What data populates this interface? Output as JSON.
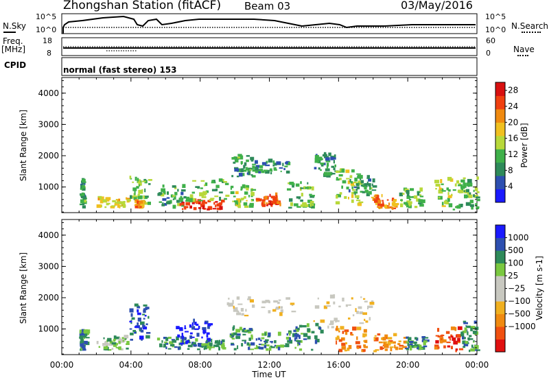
{
  "header": {
    "station": "Zhongshan Station (fitACF)",
    "beam": "Beam 03",
    "date": "03/May/2016"
  },
  "left_labels": {
    "nsky": "N.Sky",
    "freq": "Freq.",
    "mhz": "[MHz]",
    "cpid": "CPID"
  },
  "right_labels": {
    "nsearch": "N.Search",
    "nave": "Nave"
  },
  "cpid_text": "normal (fast stereo) 153",
  "noise_axis": {
    "left_top": "10^5",
    "left_bottom": "10^0",
    "right_top": "10^5",
    "right_bottom": "10^0"
  },
  "freq_axis": {
    "left_top": "18",
    "left_bottom": "8",
    "right_top": "60",
    "right_bottom": "0"
  },
  "colors": {
    "power_scale": [
      "#1a1aff",
      "#2d4fb0",
      "#2e8a5a",
      "#3fb04a",
      "#b8d83a",
      "#f0c020",
      "#f08a10",
      "#f04010",
      "#d81010"
    ],
    "velocity_scale": [
      "#e01010",
      "#f05010",
      "#f08a10",
      "#f0b020",
      "#c8c8c0",
      "#c8c8c0",
      "#7ac840",
      "#2e8a5a",
      "#2d4fb0",
      "#1a1aff"
    ]
  },
  "chart_data": [
    {
      "type": "heatmap",
      "name": "power",
      "ylabel": "Slant Range [km]",
      "xlabel": "",
      "x_ticks": [
        "00:00",
        "04:00",
        "08:00",
        "12:00",
        "16:00",
        "20:00",
        "00:00"
      ],
      "y_ticks": [
        1000,
        2000,
        3000,
        4000
      ],
      "ylim": [
        180,
        4500
      ],
      "xlim_hours": [
        0,
        24
      ],
      "colorbar": {
        "label": "Power [dB]",
        "ticks": [
          4,
          8,
          12,
          16,
          20,
          24,
          28
        ],
        "range": [
          0,
          30
        ]
      },
      "regions": [
        {
          "t0": 1.0,
          "t1": 1.3,
          "r0": 300,
          "r1": 1200,
          "v": 10
        },
        {
          "t0": 2.0,
          "t1": 3.8,
          "r0": 300,
          "r1": 600,
          "v": 18
        },
        {
          "t0": 3.9,
          "t1": 5.0,
          "r0": 300,
          "r1": 1300,
          "v": 12
        },
        {
          "t0": 4.2,
          "t1": 4.6,
          "r0": 300,
          "r1": 500,
          "v": 22
        },
        {
          "t0": 5.5,
          "t1": 7.0,
          "r0": 300,
          "r1": 1000,
          "v": 10
        },
        {
          "t0": 6.8,
          "t1": 9.3,
          "r0": 250,
          "r1": 520,
          "v": 27
        },
        {
          "t0": 7.0,
          "t1": 9.5,
          "r0": 500,
          "r1": 1250,
          "v": 12
        },
        {
          "t0": 9.8,
          "t1": 11.0,
          "r0": 1300,
          "r1": 2000,
          "v": 10
        },
        {
          "t0": 9.7,
          "t1": 11.0,
          "r0": 300,
          "r1": 1000,
          "v": 14
        },
        {
          "t0": 11.2,
          "t1": 12.6,
          "r0": 350,
          "r1": 700,
          "v": 24
        },
        {
          "t0": 11.0,
          "t1": 13.0,
          "r0": 1400,
          "r1": 1800,
          "v": 9
        },
        {
          "t0": 13.0,
          "t1": 14.5,
          "r0": 300,
          "r1": 1100,
          "v": 12
        },
        {
          "t0": 14.5,
          "t1": 15.8,
          "r0": 1300,
          "r1": 2000,
          "v": 9
        },
        {
          "t0": 15.8,
          "t1": 17.2,
          "r0": 300,
          "r1": 1500,
          "v": 14
        },
        {
          "t0": 16.5,
          "t1": 18.0,
          "r0": 700,
          "r1": 1300,
          "v": 10
        },
        {
          "t0": 17.8,
          "t1": 19.3,
          "r0": 250,
          "r1": 700,
          "v": 22
        },
        {
          "t0": 19.5,
          "t1": 20.8,
          "r0": 300,
          "r1": 900,
          "v": 12
        },
        {
          "t0": 21.5,
          "t1": 23.0,
          "r0": 250,
          "r1": 1200,
          "v": 14
        },
        {
          "t0": 23.0,
          "t1": 24.0,
          "r0": 250,
          "r1": 1300,
          "v": 12
        }
      ]
    },
    {
      "type": "heatmap",
      "name": "velocity",
      "ylabel": "Slant Range [km]",
      "xlabel": "Time UT",
      "x_ticks": [
        "00:00",
        "04:00",
        "08:00",
        "12:00",
        "16:00",
        "20:00",
        "00:00"
      ],
      "y_ticks": [
        1000,
        2000,
        3000,
        4000
      ],
      "ylim": [
        180,
        4500
      ],
      "xlim_hours": [
        0,
        24
      ],
      "colorbar": {
        "label": "Velocity [m s-1]",
        "ticks": [
          "1000",
          "500",
          "100",
          "25",
          "−25",
          "−100",
          "−500",
          "−1000"
        ]
      },
      "regions": [
        {
          "t0": 1.0,
          "t1": 1.4,
          "r0": 300,
          "r1": 900,
          "c": 7
        },
        {
          "t0": 2.0,
          "t1": 3.8,
          "r0": 300,
          "r1": 700,
          "c": 6
        },
        {
          "t0": 3.9,
          "t1": 5.0,
          "r0": 600,
          "r1": 1900,
          "c": 8
        },
        {
          "t0": 5.5,
          "t1": 7.5,
          "r0": 300,
          "r1": 700,
          "c": 7
        },
        {
          "t0": 6.5,
          "t1": 8.5,
          "r0": 500,
          "r1": 1200,
          "c": 9
        },
        {
          "t0": 7.5,
          "t1": 9.3,
          "r0": 250,
          "r1": 600,
          "c": 7
        },
        {
          "t0": 9.5,
          "t1": 13.5,
          "r0": 1400,
          "r1": 2000,
          "c": 4
        },
        {
          "t0": 9.7,
          "t1": 11.0,
          "r0": 300,
          "r1": 1000,
          "c": 7
        },
        {
          "t0": 11.0,
          "t1": 13.0,
          "r0": 300,
          "r1": 800,
          "c": 7
        },
        {
          "t0": 13.0,
          "t1": 15.0,
          "r0": 300,
          "r1": 1100,
          "c": 7
        },
        {
          "t0": 14.5,
          "t1": 18.0,
          "r0": 1000,
          "r1": 2000,
          "c": 4
        },
        {
          "t0": 15.8,
          "t1": 17.5,
          "r0": 250,
          "r1": 1000,
          "c": 2
        },
        {
          "t0": 18.0,
          "t1": 19.8,
          "r0": 250,
          "r1": 800,
          "c": 2
        },
        {
          "t0": 19.8,
          "t1": 21.0,
          "r0": 300,
          "r1": 700,
          "c": 7
        },
        {
          "t0": 21.5,
          "t1": 23.0,
          "r0": 250,
          "r1": 1000,
          "c": 1
        },
        {
          "t0": 23.0,
          "t1": 24.0,
          "r0": 250,
          "r1": 1200,
          "c": 7
        }
      ]
    }
  ]
}
